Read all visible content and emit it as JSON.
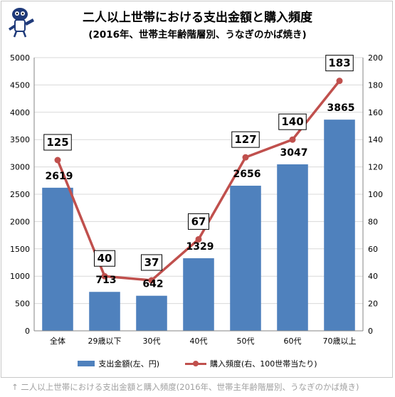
{
  "header": {
    "title": "二人以上世帯における支出金額と購入頻度",
    "subtitle": "(2016年、世帯主年齢階層別、うなぎのかば焼き)"
  },
  "caption": "↑ 二人以上世帯における支出金額と購入頻度(2016年、世帯主年齢階層別、うなぎのかば焼き)",
  "colors": {
    "bar": "#4f81bd",
    "line": "#c0504d",
    "grid": "#d9d9d9"
  },
  "mascot_icon": "mascot-character-icon",
  "chart_data": {
    "type": "bar",
    "categories": [
      "全体",
      "29歳以下",
      "30代",
      "40代",
      "50代",
      "60代",
      "70歳以上"
    ],
    "series": [
      {
        "name": "支出金額(左、円)",
        "type": "bar",
        "axis": "left",
        "values": [
          2619,
          713,
          642,
          1329,
          2656,
          3047,
          3865
        ]
      },
      {
        "name": "購入頻度(右、100世帯当たり)",
        "type": "line",
        "axis": "right",
        "values": [
          125,
          40,
          37,
          67,
          127,
          140,
          183
        ]
      }
    ],
    "ylim_left": [
      0,
      5000
    ],
    "yticks_left": [
      0,
      500,
      1000,
      1500,
      2000,
      2500,
      3000,
      3500,
      4000,
      4500,
      5000
    ],
    "ylim_right": [
      0,
      200
    ],
    "yticks_right": [
      0,
      20,
      40,
      60,
      80,
      100,
      120,
      140,
      160,
      180,
      200
    ],
    "grid": "horizontal",
    "legend": "bottom"
  }
}
